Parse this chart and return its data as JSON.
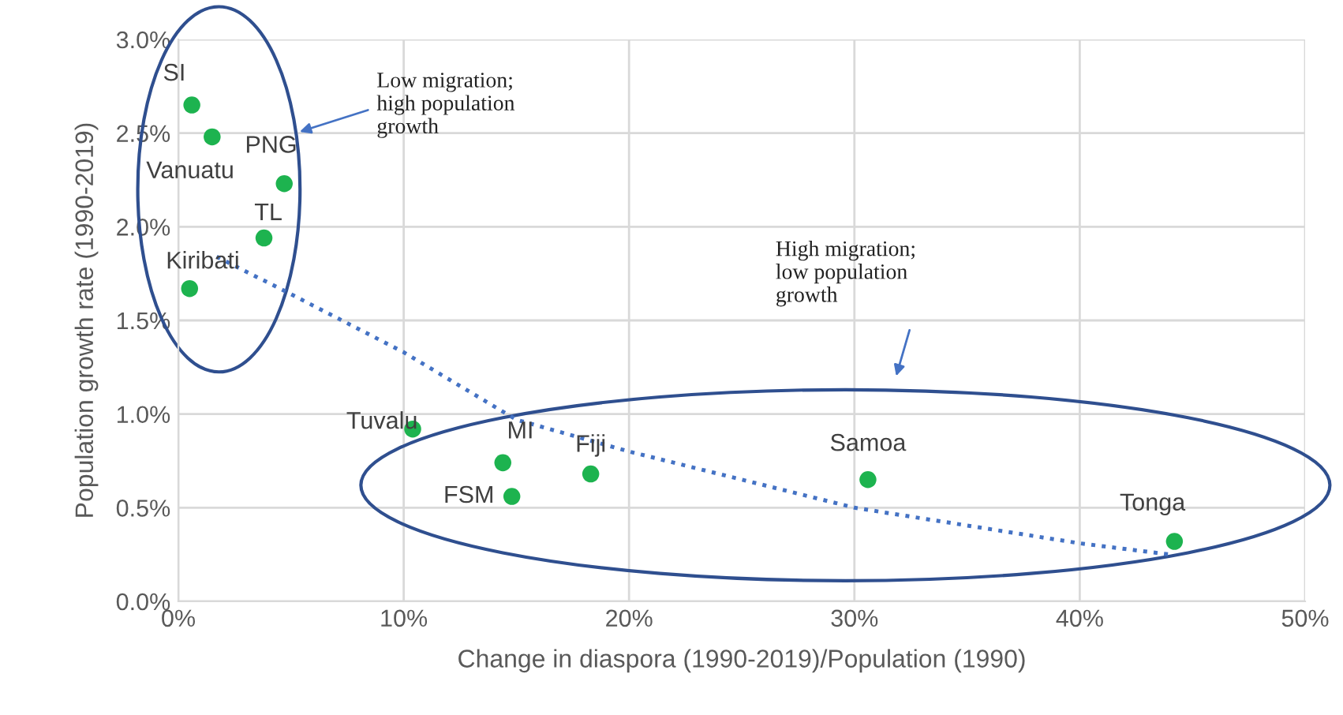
{
  "chart_data": {
    "type": "scatter",
    "xlabel": "Change in diaspora (1990-2019)/Population (1990)",
    "ylabel": "Population growth rate (1990-2019)",
    "xlim": [
      0,
      0.5
    ],
    "xticks": [
      {
        "value": 0,
        "label": "0%"
      },
      {
        "value": 0.1,
        "label": "10%"
      },
      {
        "value": 0.2,
        "label": "20%"
      },
      {
        "value": 0.3,
        "label": "30%"
      },
      {
        "value": 0.4,
        "label": "40%"
      },
      {
        "value": 0.5,
        "label": "50%"
      }
    ],
    "ylim": [
      0,
      0.03
    ],
    "yticks": [
      {
        "value": 0,
        "label": "0.0%"
      },
      {
        "value": 0.005,
        "label": "0.5%"
      },
      {
        "value": 0.01,
        "label": "1.0%"
      },
      {
        "value": 0.015,
        "label": "1.5%"
      },
      {
        "value": 0.02,
        "label": "2.0%"
      },
      {
        "value": 0.025,
        "label": "2.5%"
      },
      {
        "value": 0.03,
        "label": "3.0%"
      }
    ],
    "grid": true,
    "marker": "circle",
    "series": [
      {
        "name": "SI",
        "color": "#1db34f",
        "x": [
          0.006
        ],
        "values": [
          0.0265
        ]
      },
      {
        "name": "Vanuatu",
        "color": "#1db34f",
        "x": [
          0.015
        ],
        "values": [
          0.0248
        ]
      },
      {
        "name": "PNG",
        "color": "#1db34f",
        "x": [
          0.047
        ],
        "values": [
          0.0223
        ]
      },
      {
        "name": "TL",
        "color": "#1db34f",
        "x": [
          0.038
        ],
        "values": [
          0.0194
        ]
      },
      {
        "name": "Kiribati",
        "color": "#1db34f",
        "x": [
          0.005
        ],
        "values": [
          0.0167
        ]
      },
      {
        "name": "Tuvalu",
        "color": "#1db34f",
        "x": [
          0.104
        ],
        "values": [
          0.0092
        ]
      },
      {
        "name": "MI",
        "color": "#1db34f",
        "x": [
          0.144
        ],
        "values": [
          0.0074
        ]
      },
      {
        "name": "FSM",
        "color": "#1db34f",
        "x": [
          0.148
        ],
        "values": [
          0.0056
        ]
      },
      {
        "name": "Fiji",
        "color": "#1db34f",
        "x": [
          0.183
        ],
        "values": [
          0.0068
        ]
      },
      {
        "name": "Samoa",
        "color": "#1db34f",
        "x": [
          0.306
        ],
        "values": [
          0.0065
        ]
      },
      {
        "name": "Tonga",
        "color": "#1db34f",
        "x": [
          0.442
        ],
        "values": [
          0.0032
        ]
      },
      {
        "type": "line",
        "color": "#4472c4",
        "line_style": "dotted",
        "marker": "none",
        "x": [
          0.017,
          0.05,
          0.1,
          0.15,
          0.2,
          0.3,
          0.4,
          0.44
        ],
        "values": [
          0.0184,
          0.0164,
          0.0133,
          0.0097,
          0.008,
          0.005,
          0.0031,
          0.0025
        ]
      }
    ],
    "annotations": [
      "Low migration;\nhigh population\ngrowth",
      "High migration;\nlow population\ngrowth"
    ]
  }
}
